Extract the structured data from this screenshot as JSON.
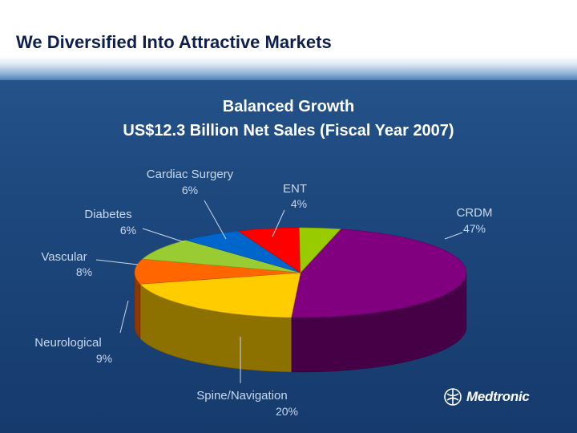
{
  "slide": {
    "title": "We Diversified Into Attractive Markets"
  },
  "logo": {
    "text": "Medtronic"
  },
  "chart_data": {
    "type": "pie",
    "title": "Balanced Growth",
    "subtitle": "US$12.3 Billion Net Sales (Fiscal Year 2007)",
    "units": "%",
    "slices": [
      {
        "label": "CRDM",
        "value": 47,
        "display": "47%",
        "color": "#800080"
      },
      {
        "label": "Spine/Navigation",
        "value": 20,
        "display": "20%",
        "color": "#ffcc00"
      },
      {
        "label": "Neurological",
        "value": 9,
        "display": "9%",
        "color": "#ff6600"
      },
      {
        "label": "Vascular",
        "value": 8,
        "display": "8%",
        "color": "#99cc33"
      },
      {
        "label": "Diabetes",
        "value": 6,
        "display": "6%",
        "color": "#0066cc"
      },
      {
        "label": "Cardiac Surgery",
        "value": 6,
        "display": "6%",
        "color": "#ff0000"
      },
      {
        "label": "ENT",
        "value": 4,
        "display": "4%",
        "color": "#99cc00"
      }
    ],
    "legend": "none"
  }
}
